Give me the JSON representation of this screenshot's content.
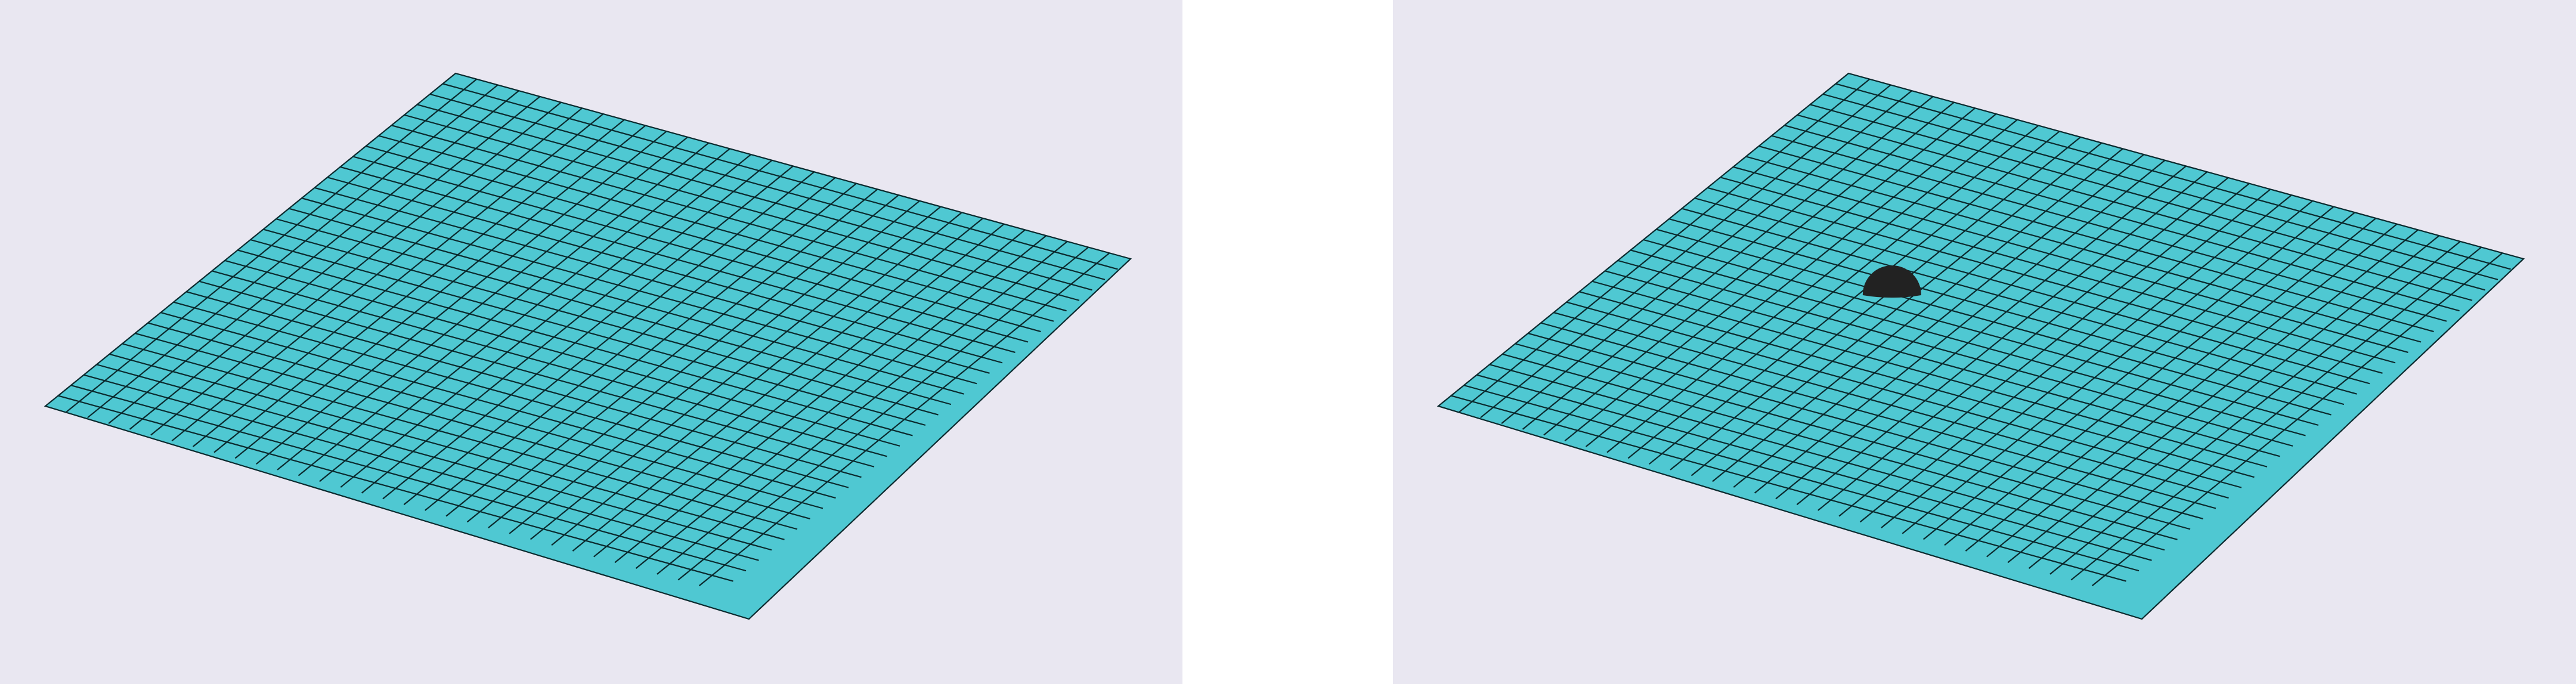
{
  "figure": {
    "panel_count": 2,
    "background_color": "#e9e7f1",
    "page_color": "#ffffff"
  },
  "mesh": {
    "divisions": 32,
    "fill_color": "#4fc8d2",
    "line_color": "#0b2a2e"
  },
  "panels": [
    {
      "id": "left",
      "description_key": "flat-plate",
      "has_obstacle": false
    },
    {
      "id": "right",
      "description_key": "plate-with-hemisphere",
      "has_obstacle": true,
      "obstacle": {
        "shape": "hemisphere",
        "color": "#222222",
        "grid_u": 0.35,
        "grid_v": 0.47
      }
    }
  ]
}
